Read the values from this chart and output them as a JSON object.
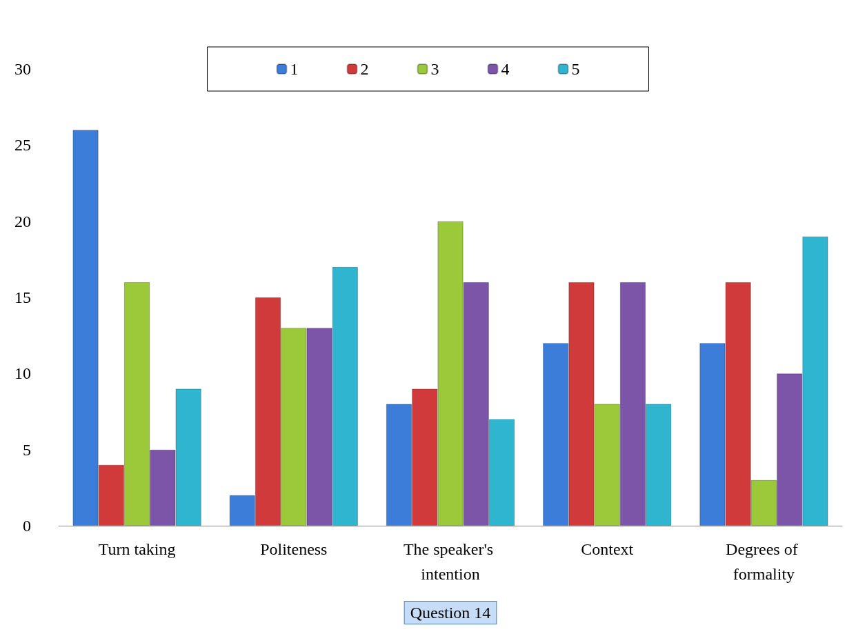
{
  "chart_data": {
    "type": "bar",
    "xlabel": "Question 14",
    "categories": [
      "Turn taking",
      "Politeness",
      "The speaker's intention",
      "Context",
      "Degrees of formality"
    ],
    "series": [
      {
        "name": "1",
        "color": "#3b7dd8",
        "values": [
          26,
          2,
          8,
          12,
          12
        ]
      },
      {
        "name": "2",
        "color": "#d03a3a",
        "values": [
          4,
          15,
          9,
          16,
          16
        ]
      },
      {
        "name": "3",
        "color": "#9bc93a",
        "values": [
          16,
          13,
          20,
          8,
          3
        ]
      },
      {
        "name": "4",
        "color": "#7d55a8",
        "values": [
          5,
          13,
          16,
          16,
          10
        ]
      },
      {
        "name": "5",
        "color": "#2fb5d0",
        "values": [
          9,
          17,
          7,
          8,
          19
        ]
      }
    ],
    "ylim": [
      0,
      30
    ],
    "yticks": [
      0,
      5,
      10,
      15,
      20,
      25,
      30
    ],
    "grid": false,
    "legend": "top"
  }
}
